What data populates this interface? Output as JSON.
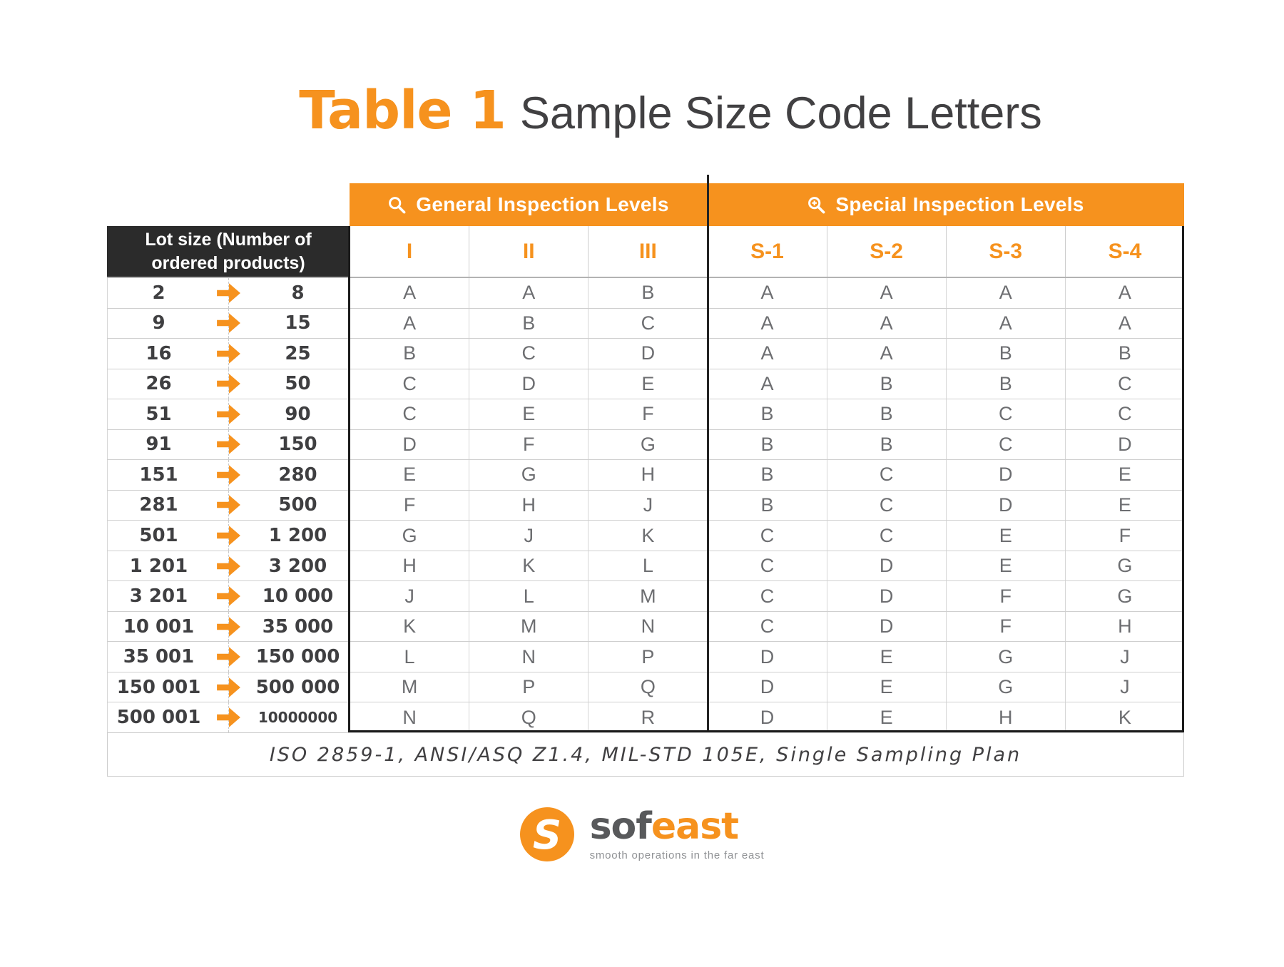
{
  "title": {
    "prefix": "Table 1",
    "rest": "Sample Size Code Letters"
  },
  "group_headers": {
    "general": {
      "label": "General Inspection Levels",
      "icon": "search-icon"
    },
    "special": {
      "label": "Special Inspection Levels",
      "icon": "zoom-in-icon"
    }
  },
  "lot_header": {
    "line1": "Lot size (Number of",
    "line2": "ordered products)"
  },
  "chart_data": {
    "type": "table",
    "title": "Table 1 Sample Size Code Letters",
    "column_groups": [
      "General Inspection Levels",
      "Special Inspection Levels"
    ],
    "lot_column_label": "Lot size (Number of ordered products)",
    "code_columns": [
      "I",
      "II",
      "III",
      "S-1",
      "S-2",
      "S-3",
      "S-4"
    ],
    "rows": [
      {
        "from": "2",
        "to": "8",
        "codes": [
          "A",
          "A",
          "B",
          "A",
          "A",
          "A",
          "A"
        ]
      },
      {
        "from": "9",
        "to": "15",
        "codes": [
          "A",
          "B",
          "C",
          "A",
          "A",
          "A",
          "A"
        ]
      },
      {
        "from": "16",
        "to": "25",
        "codes": [
          "B",
          "C",
          "D",
          "A",
          "A",
          "B",
          "B"
        ]
      },
      {
        "from": "26",
        "to": "50",
        "codes": [
          "C",
          "D",
          "E",
          "A",
          "B",
          "B",
          "C"
        ]
      },
      {
        "from": "51",
        "to": "90",
        "codes": [
          "C",
          "E",
          "F",
          "B",
          "B",
          "C",
          "C"
        ]
      },
      {
        "from": "91",
        "to": "150",
        "codes": [
          "D",
          "F",
          "G",
          "B",
          "B",
          "C",
          "D"
        ]
      },
      {
        "from": "151",
        "to": "280",
        "codes": [
          "E",
          "G",
          "H",
          "B",
          "C",
          "D",
          "E"
        ]
      },
      {
        "from": "281",
        "to": "500",
        "codes": [
          "F",
          "H",
          "J",
          "B",
          "C",
          "D",
          "E"
        ]
      },
      {
        "from": "501",
        "to": "1 200",
        "codes": [
          "G",
          "J",
          "K",
          "C",
          "C",
          "E",
          "F"
        ]
      },
      {
        "from": "1 201",
        "to": "3 200",
        "codes": [
          "H",
          "K",
          "L",
          "C",
          "D",
          "E",
          "G"
        ]
      },
      {
        "from": "3 201",
        "to": "10 000",
        "codes": [
          "J",
          "L",
          "M",
          "C",
          "D",
          "F",
          "G"
        ]
      },
      {
        "from": "10 001",
        "to": "35 000",
        "codes": [
          "K",
          "M",
          "N",
          "C",
          "D",
          "F",
          "H"
        ]
      },
      {
        "from": "35 001",
        "to": "150 000",
        "codes": [
          "L",
          "N",
          "P",
          "D",
          "E",
          "G",
          "J"
        ]
      },
      {
        "from": "150 001",
        "to": "500 000",
        "codes": [
          "M",
          "P",
          "Q",
          "D",
          "E",
          "G",
          "J"
        ]
      },
      {
        "from": "500 001",
        "to": "10000000",
        "codes": [
          "N",
          "Q",
          "R",
          "D",
          "E",
          "H",
          "K"
        ]
      }
    ],
    "footnote": "ISO 2859-1, ANSI/ASQ Z1.4, MIL-STD 105E, Single Sampling Plan"
  },
  "footer_note": "ISO 2859-1, ANSI/ASQ Z1.4, MIL-STD 105E, Single Sampling Plan",
  "logo": {
    "mark": "sofeast-s-icon",
    "name_gray": "sof",
    "name_orange": "east",
    "tagline": "smooth operations in the far east"
  },
  "icons": {
    "row_arrow": "arrow-right-icon",
    "general": "search-icon",
    "special": "zoom-in-icon"
  },
  "colors": {
    "accent_orange": "#F6921E",
    "header_black": "#2B2B2B",
    "code_letter_gray": "#6D6E71",
    "grid_light": "#CCCCCC",
    "grid_heavy": "#1C1C1C"
  }
}
